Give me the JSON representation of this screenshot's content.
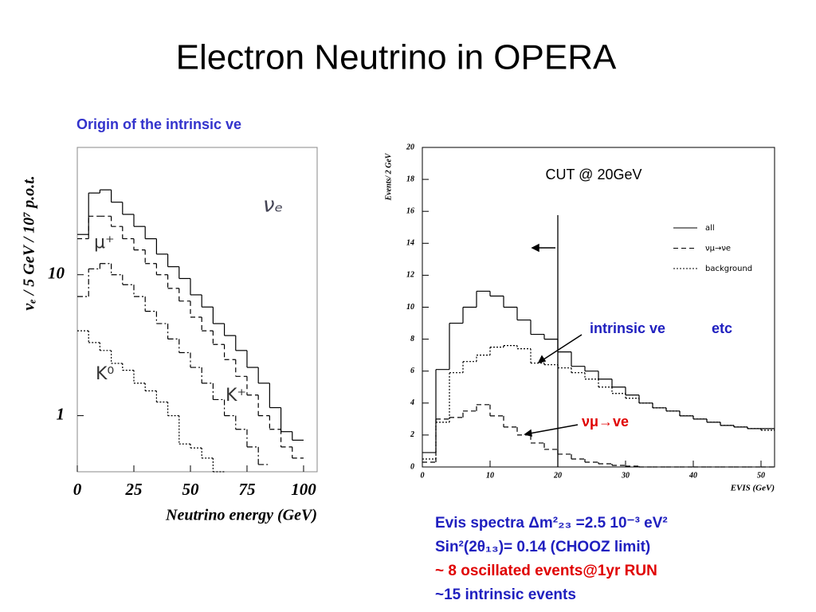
{
  "title": "Electron Neutrino in OPERA",
  "subtitle": "Origin of the intrinsic ve",
  "notes": [
    "Evis spectra  Δm²₂₃ =2.5 10⁻³ eV²",
    "Sin²(2θ₁₃)= 0.14  (CHOOZ limit)",
    "~  8 oscillated events@1yr RUN",
    "~15   intrinsic events"
  ],
  "chart_data": [
    {
      "type": "histogram",
      "x_label": "Neutrino energy (GeV)",
      "y_label": "νₑ / 5 GeV / 10⁷ p.o.t.",
      "log_y": true,
      "xlim": [
        0,
        106
      ],
      "ylim": [
        0.4,
        80
      ],
      "xticks": [
        0,
        25,
        50,
        75,
        100
      ],
      "yticks": [
        1,
        10
      ],
      "bins": [
        0,
        5,
        10,
        15,
        20,
        25,
        30,
        35,
        40,
        45,
        50,
        55,
        60,
        65,
        70,
        75,
        80,
        85,
        90,
        95,
        100
      ],
      "series": [
        {
          "name": "νₑ",
          "color": "#000000",
          "line_style": "solid",
          "values": [
            19.3,
            38,
            40,
            32.7,
            26.8,
            22,
            18,
            14,
            11.4,
            9.4,
            7.2,
            5.9,
            4.5,
            3.7,
            2.9,
            2.2,
            1.7,
            1.14,
            0.77,
            0.67
          ]
        },
        {
          "name": "μ⁺",
          "color": "#000000",
          "line_style": "dashed",
          "values": [
            18,
            26,
            26,
            22,
            18,
            15,
            12,
            10,
            8,
            6.5,
            5,
            4,
            3.2,
            2.5,
            1.9,
            1.4,
            1,
            0.8,
            0.6,
            0.5
          ]
        },
        {
          "name": "K⁺",
          "color": "#000000",
          "line_style": "dashdot",
          "values": [
            7,
            11,
            12,
            10,
            8.5,
            7,
            5.5,
            4.5,
            3.5,
            2.8,
            2.2,
            1.7,
            1.3,
            1,
            0.8,
            0.6,
            0.45,
            null,
            null,
            null
          ]
        },
        {
          "name": "K⁰",
          "color": "#000000",
          "line_style": "dotted",
          "values": [
            4,
            3.3,
            2.9,
            2.35,
            2.1,
            1.7,
            1.5,
            1.25,
            1,
            0.63,
            0.59,
            0.5,
            0.4,
            null,
            null,
            null,
            null,
            null,
            null,
            null
          ]
        }
      ]
    },
    {
      "type": "histogram",
      "x_label": "EVIS (GeV)",
      "y_label": "Events/ 2 GeV",
      "log_y": false,
      "xlim": [
        0,
        52
      ],
      "ylim": [
        0,
        20
      ],
      "xticks": [
        0,
        10,
        20,
        30,
        40,
        50
      ],
      "yticks": [
        0,
        2,
        4,
        6,
        8,
        10,
        12,
        14,
        16,
        18,
        20
      ],
      "cut": 20,
      "cut_label": "CUT @ 20GeV",
      "annotations": [
        "intrinsic ve",
        "etc",
        "νμ→ve"
      ],
      "legend": "upper right",
      "bins": [
        0,
        2,
        4,
        6,
        8,
        10,
        12,
        14,
        16,
        18,
        20,
        22,
        24,
        26,
        28,
        30,
        32,
        34,
        36,
        38,
        40,
        42,
        44,
        46,
        48,
        50,
        52
      ],
      "series": [
        {
          "name": "all",
          "color": "#000000",
          "line_style": "solid",
          "values": [
            0.9,
            6.1,
            9,
            10,
            11,
            10.7,
            10,
            9.2,
            8.3,
            8,
            7.2,
            6.3,
            6,
            5.5,
            5,
            4.5,
            4,
            3.7,
            3.5,
            3.2,
            3,
            2.8,
            2.6,
            2.5,
            2.4,
            2.4
          ]
        },
        {
          "name": "νμ→νe",
          "color": "#000000",
          "line_style": "dashed",
          "values": [
            0.3,
            3,
            3.1,
            3.5,
            3.9,
            3.2,
            2.5,
            2,
            1.5,
            1.1,
            0.8,
            0.5,
            0.3,
            0.2,
            0.1,
            0.05,
            0,
            0,
            0,
            0,
            0,
            0,
            0,
            0,
            0,
            0
          ]
        },
        {
          "name": "background",
          "color": "#000000",
          "line_style": "dotted",
          "values": [
            0.5,
            2.8,
            5.9,
            6.6,
            7,
            7.5,
            7.6,
            7.4,
            6.5,
            6.4,
            6.2,
            5.9,
            5.5,
            5,
            4.6,
            4.3,
            4,
            3.7,
            3.5,
            3.2,
            3,
            2.8,
            2.6,
            2.5,
            2.4,
            2.3
          ]
        }
      ]
    }
  ]
}
